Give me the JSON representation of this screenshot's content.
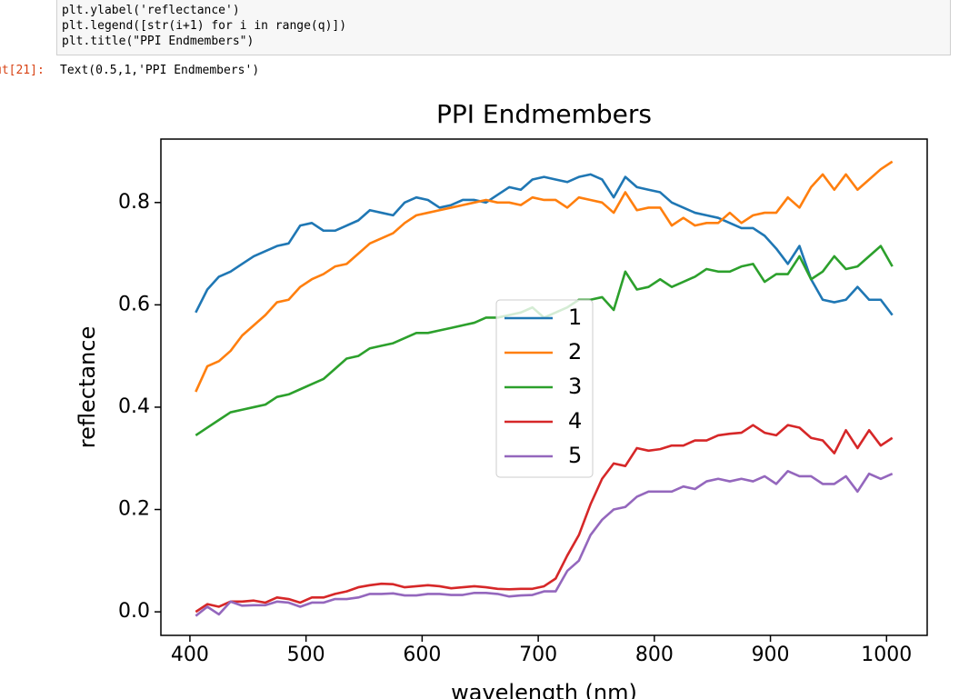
{
  "notebook": {
    "code_lines": [
      "plt.ylabel('reflectance')",
      "plt.legend([str(i+1) for i in range(q)])",
      "plt.title(\"PPI Endmembers\")"
    ],
    "out_prompt": "ut[21]:",
    "out_text": "Text(0.5,1,'PPI Endmembers')"
  },
  "chart_data": {
    "type": "line",
    "title": "PPI Endmembers",
    "x_label": "wavelength (nm)",
    "y_label": "reflectance",
    "x": [
      405,
      415,
      425,
      435,
      445,
      455,
      465,
      475,
      485,
      495,
      505,
      515,
      525,
      535,
      545,
      555,
      565,
      575,
      585,
      595,
      605,
      615,
      625,
      635,
      645,
      655,
      665,
      675,
      685,
      695,
      705,
      715,
      725,
      735,
      745,
      755,
      765,
      775,
      785,
      795,
      805,
      815,
      825,
      835,
      845,
      855,
      865,
      875,
      885,
      895,
      905,
      915,
      925,
      935,
      945,
      955,
      965,
      975,
      985,
      995,
      1005
    ],
    "series": [
      {
        "name": "1",
        "color": "#1f77b4",
        "values": [
          0.585,
          0.63,
          0.655,
          0.665,
          0.68,
          0.695,
          0.705,
          0.715,
          0.72,
          0.755,
          0.76,
          0.745,
          0.745,
          0.755,
          0.765,
          0.785,
          0.78,
          0.775,
          0.8,
          0.81,
          0.805,
          0.79,
          0.795,
          0.805,
          0.805,
          0.8,
          0.815,
          0.83,
          0.825,
          0.845,
          0.85,
          0.845,
          0.84,
          0.85,
          0.855,
          0.845,
          0.81,
          0.85,
          0.83,
          0.825,
          0.82,
          0.8,
          0.79,
          0.78,
          0.775,
          0.77,
          0.76,
          0.75,
          0.75,
          0.735,
          0.71,
          0.68,
          0.715,
          0.65,
          0.61,
          0.605,
          0.61,
          0.635,
          0.61,
          0.61,
          0.58
        ]
      },
      {
        "name": "2",
        "color": "#ff7f0e",
        "values": [
          0.43,
          0.48,
          0.49,
          0.51,
          0.54,
          0.56,
          0.58,
          0.605,
          0.61,
          0.635,
          0.65,
          0.66,
          0.675,
          0.68,
          0.7,
          0.72,
          0.73,
          0.74,
          0.76,
          0.775,
          0.78,
          0.785,
          0.79,
          0.795,
          0.8,
          0.805,
          0.8,
          0.8,
          0.795,
          0.81,
          0.805,
          0.805,
          0.79,
          0.81,
          0.805,
          0.8,
          0.78,
          0.82,
          0.785,
          0.79,
          0.79,
          0.755,
          0.77,
          0.755,
          0.76,
          0.76,
          0.78,
          0.76,
          0.775,
          0.78,
          0.78,
          0.81,
          0.79,
          0.83,
          0.855,
          0.825,
          0.855,
          0.825,
          0.845,
          0.865,
          0.88
        ]
      },
      {
        "name": "3",
        "color": "#2ca02c",
        "values": [
          0.345,
          0.36,
          0.375,
          0.39,
          0.395,
          0.4,
          0.405,
          0.42,
          0.425,
          0.435,
          0.445,
          0.455,
          0.475,
          0.495,
          0.5,
          0.515,
          0.52,
          0.525,
          0.535,
          0.545,
          0.545,
          0.55,
          0.555,
          0.56,
          0.565,
          0.575,
          0.575,
          0.58,
          0.585,
          0.595,
          0.575,
          0.585,
          0.595,
          0.61,
          0.61,
          0.615,
          0.59,
          0.665,
          0.63,
          0.635,
          0.65,
          0.635,
          0.645,
          0.655,
          0.67,
          0.665,
          0.665,
          0.675,
          0.68,
          0.645,
          0.66,
          0.66,
          0.695,
          0.65,
          0.665,
          0.695,
          0.67,
          0.675,
          0.695,
          0.715,
          0.675
        ]
      },
      {
        "name": "4",
        "color": "#d62728",
        "values": [
          0.0,
          0.015,
          0.01,
          0.02,
          0.02,
          0.022,
          0.018,
          0.028,
          0.025,
          0.018,
          0.028,
          0.028,
          0.035,
          0.04,
          0.048,
          0.052,
          0.055,
          0.054,
          0.048,
          0.05,
          0.052,
          0.05,
          0.046,
          0.048,
          0.05,
          0.048,
          0.045,
          0.044,
          0.045,
          0.045,
          0.05,
          0.065,
          0.11,
          0.15,
          0.21,
          0.26,
          0.29,
          0.285,
          0.32,
          0.315,
          0.318,
          0.325,
          0.325,
          0.335,
          0.335,
          0.345,
          0.348,
          0.35,
          0.365,
          0.35,
          0.345,
          0.365,
          0.36,
          0.34,
          0.335,
          0.31,
          0.355,
          0.32,
          0.355,
          0.325,
          0.34
        ]
      },
      {
        "name": "5",
        "color": "#9467bd",
        "values": [
          -0.008,
          0.01,
          -0.005,
          0.02,
          0.012,
          0.013,
          0.013,
          0.02,
          0.018,
          0.01,
          0.018,
          0.018,
          0.025,
          0.025,
          0.028,
          0.035,
          0.035,
          0.036,
          0.032,
          0.032,
          0.035,
          0.035,
          0.033,
          0.033,
          0.037,
          0.037,
          0.035,
          0.03,
          0.032,
          0.033,
          0.04,
          0.04,
          0.08,
          0.1,
          0.15,
          0.18,
          0.2,
          0.205,
          0.225,
          0.235,
          0.235,
          0.235,
          0.245,
          0.24,
          0.255,
          0.26,
          0.255,
          0.26,
          0.255,
          0.265,
          0.25,
          0.275,
          0.265,
          0.265,
          0.25,
          0.25,
          0.265,
          0.235,
          0.27,
          0.26,
          0.27
        ]
      }
    ],
    "xlim": [
      375,
      1035
    ],
    "ylim": [
      -0.046,
      0.924
    ],
    "xticks": [
      400,
      500,
      600,
      700,
      800,
      900,
      1000
    ],
    "yticks": [
      {
        "value": 0,
        "label": "0.0"
      },
      0.2,
      0.4,
      0.6,
      0.8
    ],
    "legend": "center"
  }
}
